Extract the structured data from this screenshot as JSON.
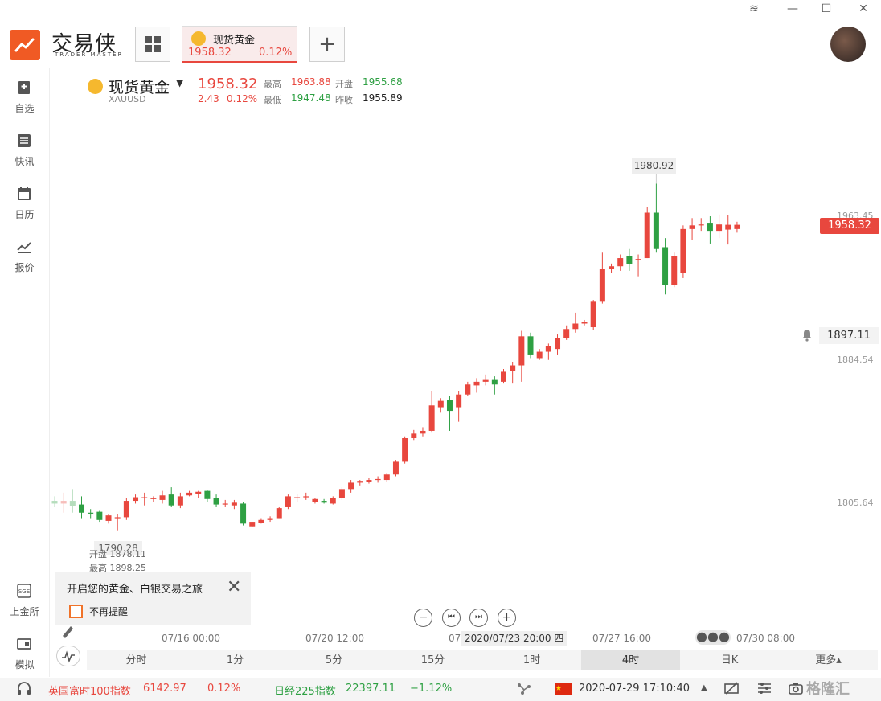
{
  "window": {
    "controls": {
      "layers": "≋",
      "minimize": "—",
      "maximize": "☐",
      "close": "✕"
    }
  },
  "app": {
    "name": "交易侠",
    "subtitle": "TRADER MASTER"
  },
  "tabs": [
    {
      "name": "现货黄金",
      "price": "1958.32",
      "change_pct": "0.12%",
      "active": true
    }
  ],
  "add_tab_label": "+",
  "nav": [
    {
      "label": "自选",
      "icon": "bookmark-plus-icon"
    },
    {
      "label": "快讯",
      "icon": "news-list-icon"
    },
    {
      "label": "日历",
      "icon": "calendar-icon"
    },
    {
      "label": "报价",
      "icon": "trend-chart-icon"
    },
    {
      "label": "上金所",
      "icon": "sge-icon"
    },
    {
      "label": "模拟",
      "icon": "wallet-icon"
    }
  ],
  "symbol": {
    "name": "现货黄金",
    "code": "XAUUSD",
    "price": "1958.32",
    "change": "2.43",
    "change_pct": "0.12%",
    "high_label": "最高",
    "high": "1963.88",
    "open_label": "开盘",
    "open": "1955.68",
    "low_label": "最低",
    "low": "1947.48",
    "prev_close_label": "昨收",
    "prev_close": "1955.89"
  },
  "chart_data": {
    "type": "candlestick",
    "period": "4时",
    "y_ticks": [
      "1963.45",
      "1884.54",
      "1805.64"
    ],
    "ylim": [
      1775,
      2000
    ],
    "current_price": "1958.32",
    "crosshair_price": "1897.11",
    "crosshair_time": "2020/07/23 20:00 四",
    "crosshair_time_prefix": "07,",
    "max_label": "1980.92",
    "min_label": "1790.28",
    "hover_info": {
      "open_label": "开盘",
      "open": "1878.11",
      "high_label": "最高",
      "high": "1898.25"
    },
    "x_ticks": [
      {
        "label": "07/16 00:00",
        "index": 13
      },
      {
        "label": "07/20 12:00",
        "index": 29
      },
      {
        "label": "07/27 16:00",
        "index": 63
      },
      {
        "label": "07/30 08:00",
        "index": 78
      }
    ],
    "candles": [
      {
        "o": 1806.5,
        "h": 1809.0,
        "l": 1803.0,
        "c": 1805.0
      },
      {
        "o": 1805.0,
        "h": 1811.0,
        "l": 1800.0,
        "c": 1806.5
      },
      {
        "o": 1806.5,
        "h": 1813.0,
        "l": 1800.0,
        "c": 1803.5
      },
      {
        "o": 1804.5,
        "h": 1809.0,
        "l": 1797.0,
        "c": 1800.0
      },
      {
        "o": 1800.0,
        "h": 1802.0,
        "l": 1797.0,
        "c": 1799.5
      },
      {
        "o": 1800.5,
        "h": 1801.0,
        "l": 1795.0,
        "c": 1796.0
      },
      {
        "o": 1795.5,
        "h": 1799.0,
        "l": 1794.0,
        "c": 1798.5
      },
      {
        "o": 1797.5,
        "h": 1799.0,
        "l": 1790.3,
        "c": 1797.5
      },
      {
        "o": 1797.5,
        "h": 1808.0,
        "l": 1796.0,
        "c": 1806.5
      },
      {
        "o": 1806.5,
        "h": 1810.0,
        "l": 1805.0,
        "c": 1808.5
      },
      {
        "o": 1808.0,
        "h": 1811.0,
        "l": 1804.0,
        "c": 1808.5
      },
      {
        "o": 1808.0,
        "h": 1809.0,
        "l": 1806.0,
        "c": 1808.0
      },
      {
        "o": 1807.0,
        "h": 1812.0,
        "l": 1805.0,
        "c": 1809.5
      },
      {
        "o": 1810.0,
        "h": 1814.0,
        "l": 1803.0,
        "c": 1804.0
      },
      {
        "o": 1804.0,
        "h": 1811.0,
        "l": 1802.5,
        "c": 1809.0
      },
      {
        "o": 1809.5,
        "h": 1812.0,
        "l": 1809.0,
        "c": 1811.0
      },
      {
        "o": 1810.5,
        "h": 1812.0,
        "l": 1808.0,
        "c": 1811.5
      },
      {
        "o": 1812.0,
        "h": 1812.5,
        "l": 1806.0,
        "c": 1807.5
      },
      {
        "o": 1808.0,
        "h": 1810.0,
        "l": 1803.0,
        "c": 1804.5
      },
      {
        "o": 1804.5,
        "h": 1807.0,
        "l": 1803.0,
        "c": 1805.0
      },
      {
        "o": 1804.0,
        "h": 1807.0,
        "l": 1802.0,
        "c": 1805.5
      },
      {
        "o": 1805.0,
        "h": 1806.0,
        "l": 1793.0,
        "c": 1794.0
      },
      {
        "o": 1792.5,
        "h": 1795.0,
        "l": 1792.0,
        "c": 1795.0
      },
      {
        "o": 1794.5,
        "h": 1797.0,
        "l": 1794.0,
        "c": 1796.0
      },
      {
        "o": 1796.0,
        "h": 1798.0,
        "l": 1795.0,
        "c": 1797.0
      },
      {
        "o": 1797.0,
        "h": 1803.0,
        "l": 1797.0,
        "c": 1802.5
      },
      {
        "o": 1803.0,
        "h": 1810.0,
        "l": 1802.0,
        "c": 1809.0
      },
      {
        "o": 1808.5,
        "h": 1810.5,
        "l": 1806.0,
        "c": 1808.5
      },
      {
        "o": 1809.0,
        "h": 1811.0,
        "l": 1807.0,
        "c": 1809.0
      },
      {
        "o": 1806.0,
        "h": 1808.0,
        "l": 1805.0,
        "c": 1807.5
      },
      {
        "o": 1806.5,
        "h": 1807.5,
        "l": 1805.0,
        "c": 1805.5
      },
      {
        "o": 1805.0,
        "h": 1809.0,
        "l": 1804.5,
        "c": 1808.0
      },
      {
        "o": 1808.0,
        "h": 1814.0,
        "l": 1807.0,
        "c": 1813.0
      },
      {
        "o": 1813.0,
        "h": 1818.0,
        "l": 1811.0,
        "c": 1816.5
      },
      {
        "o": 1816.5,
        "h": 1818.0,
        "l": 1815.0,
        "c": 1817.5
      },
      {
        "o": 1817.0,
        "h": 1819.0,
        "l": 1816.0,
        "c": 1818.0
      },
      {
        "o": 1818.0,
        "h": 1820.0,
        "l": 1816.5,
        "c": 1818.5
      },
      {
        "o": 1818.0,
        "h": 1822.0,
        "l": 1817.0,
        "c": 1821.0
      },
      {
        "o": 1821.0,
        "h": 1829.0,
        "l": 1820.0,
        "c": 1828.0
      },
      {
        "o": 1828.0,
        "h": 1842.0,
        "l": 1827.0,
        "c": 1841.0
      },
      {
        "o": 1841.0,
        "h": 1845.5,
        "l": 1840.0,
        "c": 1843.5
      },
      {
        "o": 1843.5,
        "h": 1847.0,
        "l": 1842.0,
        "c": 1845.0
      },
      {
        "o": 1845.0,
        "h": 1867.0,
        "l": 1844.0,
        "c": 1859.0
      },
      {
        "o": 1858.0,
        "h": 1863.0,
        "l": 1855.0,
        "c": 1861.5
      },
      {
        "o": 1862.0,
        "h": 1864.0,
        "l": 1845.0,
        "c": 1856.0
      },
      {
        "o": 1858.0,
        "h": 1867.0,
        "l": 1850.0,
        "c": 1865.0
      },
      {
        "o": 1865.0,
        "h": 1872.0,
        "l": 1864.0,
        "c": 1870.5
      },
      {
        "o": 1870.0,
        "h": 1874.0,
        "l": 1866.0,
        "c": 1872.0
      },
      {
        "o": 1872.0,
        "h": 1876.0,
        "l": 1870.0,
        "c": 1873.0
      },
      {
        "o": 1873.0,
        "h": 1875.0,
        "l": 1865.0,
        "c": 1870.5
      },
      {
        "o": 1872.0,
        "h": 1879.0,
        "l": 1871.0,
        "c": 1877.5
      },
      {
        "o": 1878.0,
        "h": 1883.0,
        "l": 1871.0,
        "c": 1881.0
      },
      {
        "o": 1881.0,
        "h": 1900.0,
        "l": 1872.0,
        "c": 1897.0
      },
      {
        "o": 1897.0,
        "h": 1899.0,
        "l": 1885.0,
        "c": 1887.0
      },
      {
        "o": 1885.0,
        "h": 1890.0,
        "l": 1884.0,
        "c": 1888.5
      },
      {
        "o": 1888.5,
        "h": 1893.0,
        "l": 1884.0,
        "c": 1891.5
      },
      {
        "o": 1890.0,
        "h": 1898.0,
        "l": 1887.0,
        "c": 1896.0
      },
      {
        "o": 1896.0,
        "h": 1903.0,
        "l": 1895.0,
        "c": 1901.0
      },
      {
        "o": 1901.0,
        "h": 1910.0,
        "l": 1899.0,
        "c": 1904.0
      },
      {
        "o": 1904.0,
        "h": 1906.0,
        "l": 1903.0,
        "c": 1905.0
      },
      {
        "o": 1902.0,
        "h": 1917.0,
        "l": 1900.5,
        "c": 1916.0
      },
      {
        "o": 1916.0,
        "h": 1943.0,
        "l": 1915.0,
        "c": 1934.0
      },
      {
        "o": 1934.0,
        "h": 1937.0,
        "l": 1932.0,
        "c": 1935.5
      },
      {
        "o": 1935.5,
        "h": 1942.0,
        "l": 1933.0,
        "c": 1940.0
      },
      {
        "o": 1941.0,
        "h": 1945.0,
        "l": 1933.0,
        "c": 1936.5
      },
      {
        "o": 1939.0,
        "h": 1942.0,
        "l": 1930.0,
        "c": 1939.5
      },
      {
        "o": 1940.0,
        "h": 1968.0,
        "l": 1940.0,
        "c": 1965.0
      },
      {
        "o": 1965.0,
        "h": 1980.92,
        "l": 1943.0,
        "c": 1945.0
      },
      {
        "o": 1946.0,
        "h": 1951.0,
        "l": 1920.0,
        "c": 1925.0
      },
      {
        "o": 1925.0,
        "h": 1943.0,
        "l": 1924.0,
        "c": 1941.0
      },
      {
        "o": 1932.0,
        "h": 1958.0,
        "l": 1929.0,
        "c": 1956.0
      },
      {
        "o": 1956.0,
        "h": 1962.0,
        "l": 1950.0,
        "c": 1958.0
      },
      {
        "o": 1958.0,
        "h": 1962.0,
        "l": 1955.0,
        "c": 1958.5
      },
      {
        "o": 1959.0,
        "h": 1963.0,
        "l": 1948.0,
        "c": 1955.0
      },
      {
        "o": 1955.0,
        "h": 1964.0,
        "l": 1951.0,
        "c": 1958.5
      },
      {
        "o": 1955.68,
        "h": 1963.88,
        "l": 1947.48,
        "c": 1958.32
      },
      {
        "o": 1956.0,
        "h": 1960.0,
        "l": 1954.0,
        "c": 1958.32
      }
    ],
    "up_color": "#e8473e",
    "down_color": "#2ea043",
    "faded_candles_count": 3
  },
  "tip": {
    "text": "开启您的黄金、白银交易之旅",
    "close": "✕",
    "checkbox_label": "不再提醒",
    "checked": false
  },
  "zoom_controls": [
    "−",
    "⏮",
    "⏭",
    "+"
  ],
  "periods": [
    {
      "label": "分时",
      "active": false
    },
    {
      "label": "1分",
      "active": false
    },
    {
      "label": "5分",
      "active": false
    },
    {
      "label": "15分",
      "active": false
    },
    {
      "label": "1时",
      "active": false
    },
    {
      "label": "4时",
      "active": true
    },
    {
      "label": "日K",
      "active": false
    },
    {
      "label": "更多▴",
      "active": false
    }
  ],
  "more_dots": "●●●",
  "ticker": {
    "items": [
      {
        "name": "英国富时100指数",
        "value": "6142.97",
        "change": "0.12%",
        "direction": "up"
      },
      {
        "name": "日经225指数",
        "value": "22397.11",
        "change": "−1.12%",
        "direction": "down"
      }
    ],
    "datetime": "2020-07-29 17:10:40",
    "caret": "▲"
  },
  "watermark": "格隆汇",
  "colors": {
    "accent_red": "#e8473e",
    "accent_green": "#2ea043",
    "brand_orange": "#f05a24",
    "gold": "#f5b82e"
  }
}
